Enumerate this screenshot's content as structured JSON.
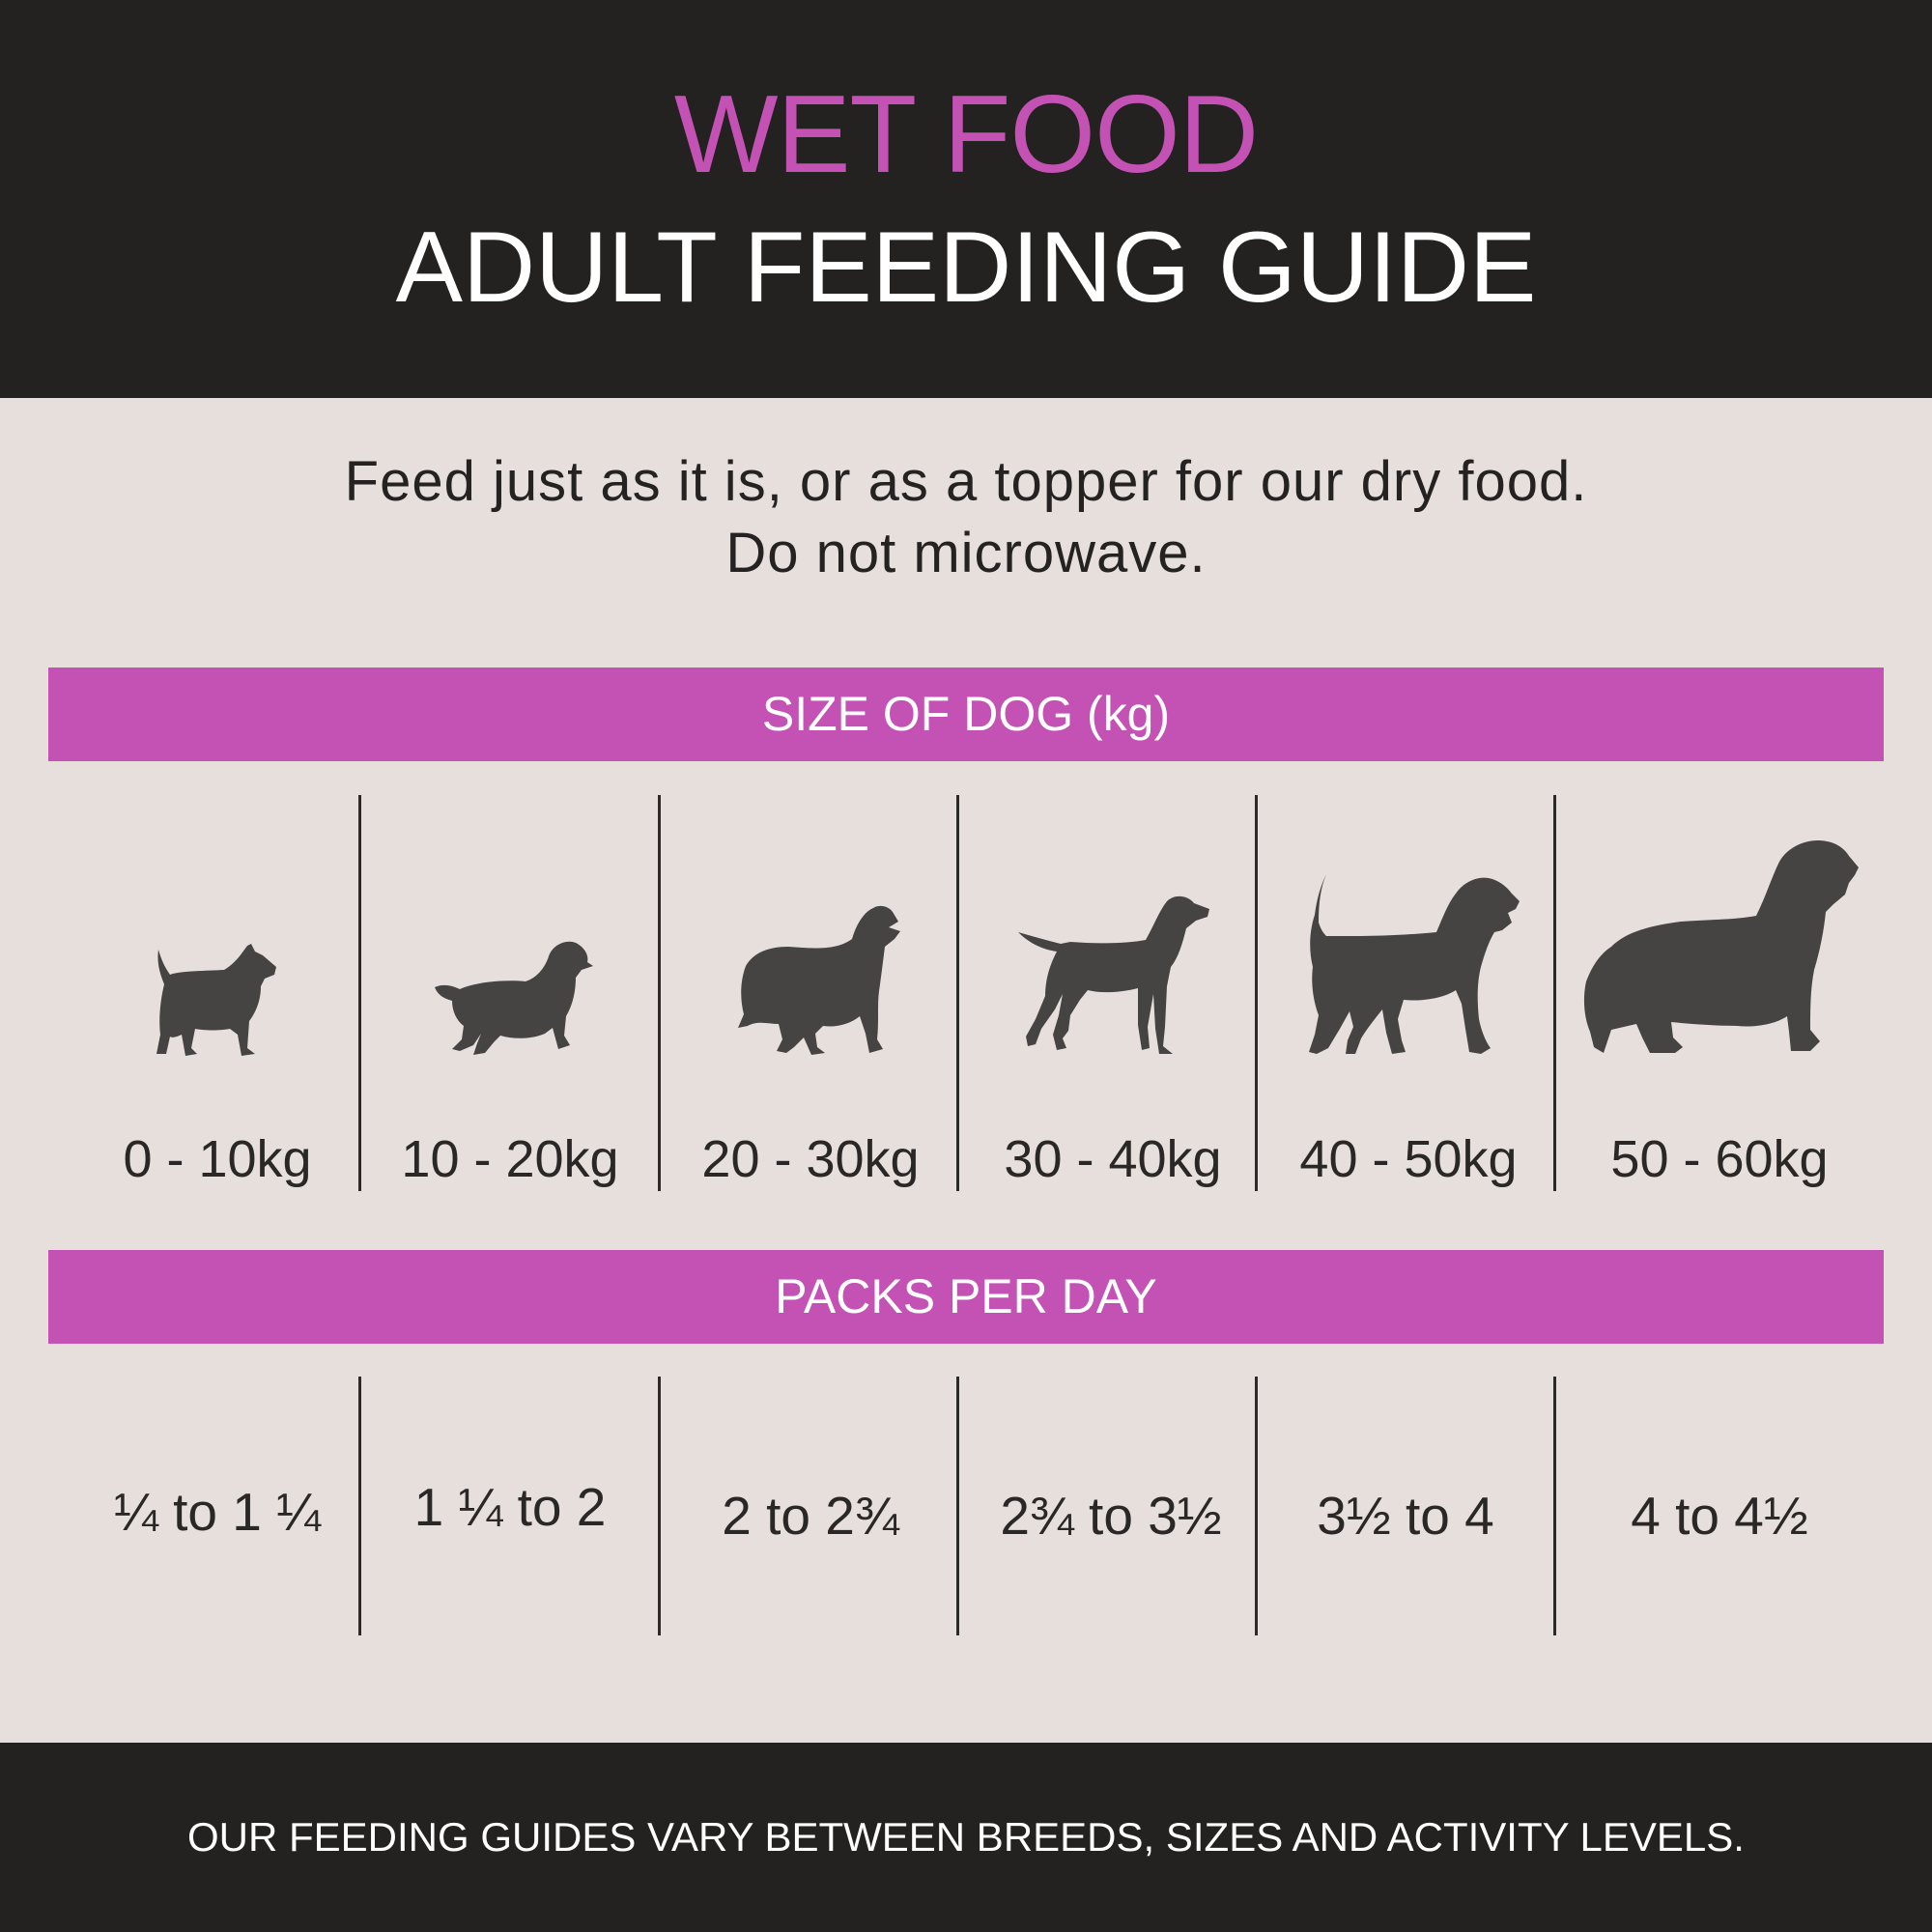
{
  "header": {
    "accent_title": "WET FOOD",
    "title": "ADULT FEEDING GUIDE"
  },
  "intro": {
    "line1": "Feed just as it is, or as a topper for our dry food.",
    "line2": "Do not microwave."
  },
  "size_band": {
    "label": "SIZE OF DOG (kg)"
  },
  "sizes": [
    {
      "label": "0 - 10kg",
      "icon": "dog-terrier-icon"
    },
    {
      "label": "10 - 20kg",
      "icon": "dog-spaniel-icon"
    },
    {
      "label": "20 - 30kg",
      "icon": "dog-collie-icon"
    },
    {
      "label": "30 - 40kg",
      "icon": "dog-pointer-icon"
    },
    {
      "label": "40 - 50kg",
      "icon": "dog-schnauzer-icon"
    },
    {
      "label": "50 - 60kg",
      "icon": "dog-newfoundland-icon"
    }
  ],
  "packs_band": {
    "label": "PACKS PER DAY"
  },
  "packs": [
    "¼ to 1 ¼",
    "1 ¼ to 2",
    "2 to 2¾",
    "2¾ to 3½",
    "3½ to 4",
    "4 to 4½"
  ],
  "footer": {
    "text": "OUR FEEDING GUIDES VARY BETWEEN BREEDS, SIZES AND ACTIVITY LEVELS."
  },
  "colors": {
    "accent": "#c352b4",
    "dark": "#232220",
    "background": "#e7dfdb",
    "silhouette": "#454442"
  }
}
